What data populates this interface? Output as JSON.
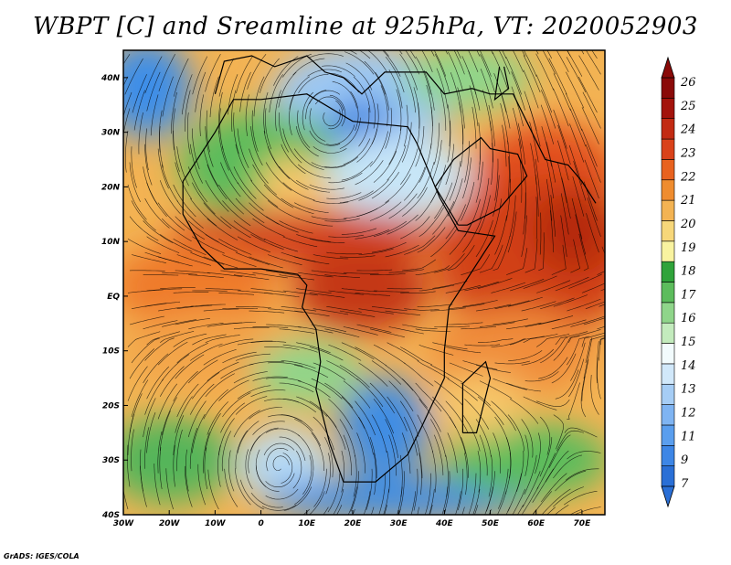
{
  "title": "WBPT [C] and Sreamline at 925hPa, VT: 2020052903",
  "credit": "GrADS: IGES/COLA",
  "map": {
    "lon_range": [
      -30,
      75
    ],
    "lat_range": [
      -40,
      45
    ],
    "x_ticks": [
      {
        "lon": -30,
        "label": "30W"
      },
      {
        "lon": -20,
        "label": "20W"
      },
      {
        "lon": -10,
        "label": "10W"
      },
      {
        "lon": 0,
        "label": "0"
      },
      {
        "lon": 10,
        "label": "10E"
      },
      {
        "lon": 20,
        "label": "20E"
      },
      {
        "lon": 30,
        "label": "30E"
      },
      {
        "lon": 40,
        "label": "40E"
      },
      {
        "lon": 50,
        "label": "50E"
      },
      {
        "lon": 60,
        "label": "60E"
      },
      {
        "lon": 70,
        "label": "70E"
      }
    ],
    "y_ticks": [
      {
        "lat": 40,
        "label": "40N"
      },
      {
        "lat": 30,
        "label": "30N"
      },
      {
        "lat": 20,
        "label": "20N"
      },
      {
        "lat": 10,
        "label": "10N"
      },
      {
        "lat": 0,
        "label": "EQ"
      },
      {
        "lat": -10,
        "label": "10S"
      },
      {
        "lat": -20,
        "label": "20S"
      },
      {
        "lat": -30,
        "label": "30S"
      },
      {
        "lat": -40,
        "label": "40S"
      }
    ],
    "field_zones": [
      {
        "lon": -25,
        "lat": 38,
        "rx": 10,
        "ry": 9,
        "color": "#3c8ee8"
      },
      {
        "lon": 22,
        "lat": 36,
        "rx": 20,
        "ry": 10,
        "color": "#9cc8f4"
      },
      {
        "lon": 22,
        "lat": 30,
        "rx": 8,
        "ry": 6,
        "color": "#2f7fe0"
      },
      {
        "lon": 45,
        "lat": 40,
        "rx": 14,
        "ry": 6,
        "color": "#8fd58a"
      },
      {
        "lon": 0,
        "lat": 24,
        "rx": 18,
        "ry": 10,
        "color": "#5cbc5c"
      },
      {
        "lon": 30,
        "lat": 22,
        "rx": 16,
        "ry": 8,
        "color": "#c7e6f8"
      },
      {
        "lon": 7,
        "lat": 19,
        "rx": 8,
        "ry": 7,
        "color": "#f7c86b"
      },
      {
        "lon": 62,
        "lat": 22,
        "rx": 16,
        "ry": 10,
        "color": "#e2501f"
      },
      {
        "lon": 10,
        "lat": 11,
        "rx": 30,
        "ry": 5,
        "color": "#d3401a"
      },
      {
        "lon": 60,
        "lat": 7,
        "rx": 22,
        "ry": 15,
        "color": "#d24117"
      },
      {
        "lon": 68,
        "lat": 12,
        "rx": 9,
        "ry": 8,
        "color": "#b52a0c"
      },
      {
        "lon": -15,
        "lat": 2,
        "rx": 18,
        "ry": 8,
        "color": "#ef7a2a"
      },
      {
        "lon": 22,
        "lat": 1,
        "rx": 15,
        "ry": 8,
        "color": "#c43812"
      },
      {
        "lon": 55,
        "lat": -10,
        "rx": 18,
        "ry": 8,
        "color": "#f08c3a"
      },
      {
        "lon": -10,
        "lat": -10,
        "rx": 20,
        "ry": 7,
        "color": "#f3a44a"
      },
      {
        "lon": 10,
        "lat": -14,
        "rx": 12,
        "ry": 6,
        "color": "#8fd58a"
      },
      {
        "lon": 27,
        "lat": -24,
        "rx": 10,
        "ry": 9,
        "color": "#3f8de4"
      },
      {
        "lon": 5,
        "lat": -31,
        "rx": 10,
        "ry": 7,
        "color": "#b8dbf5"
      },
      {
        "lon": -20,
        "lat": -30,
        "rx": 14,
        "ry": 8,
        "color": "#55b55a"
      },
      {
        "lon": 30,
        "lat": -37,
        "rx": 30,
        "ry": 4,
        "color": "#3d8de6"
      },
      {
        "lon": 58,
        "lat": -30,
        "rx": 18,
        "ry": 7,
        "color": "#5cbc5c"
      },
      {
        "lon": 48,
        "lat": -20,
        "rx": 10,
        "ry": 6,
        "color": "#f7c86b"
      }
    ],
    "vortices": [
      {
        "lon": 15,
        "lat": 33,
        "note": "cyclonic swirl"
      },
      {
        "lon": 4,
        "lat": -31,
        "note": "anticyclonic swirl"
      }
    ]
  },
  "colorbar": {
    "colors": [
      "#2a6fd6",
      "#3d86e6",
      "#5a9eee",
      "#7fb4f2",
      "#a6cdf5",
      "#d1e8fa",
      "#f2fbfd",
      "#c3ebbd",
      "#8fd58a",
      "#5cbc5c",
      "#2fa33a",
      "#f9f3a0",
      "#f7d77a",
      "#f3b353",
      "#ef8c2f",
      "#e8621f",
      "#d9421a",
      "#c22a12",
      "#a3130b",
      "#8a0a08"
    ],
    "labels": [
      "26",
      "25",
      "24",
      "23",
      "22",
      "21",
      "20",
      "19",
      "18",
      "17",
      "16",
      "15",
      "14",
      "13",
      "12",
      "11",
      "9",
      "7"
    ]
  }
}
